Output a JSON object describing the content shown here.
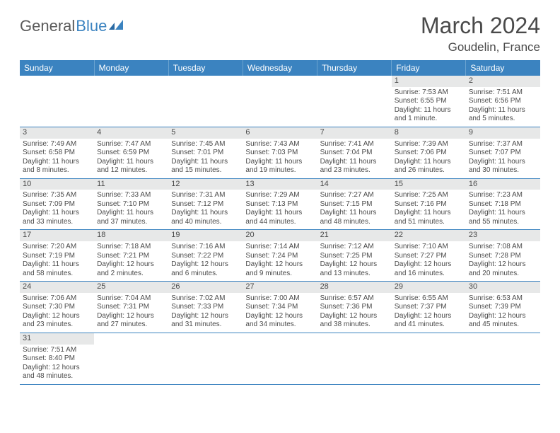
{
  "logo": {
    "word1": "General",
    "word2": "Blue"
  },
  "title": "March 2024",
  "location": "Goudelin, France",
  "colors": {
    "header_bg": "#3b83c0",
    "header_text": "#ffffff",
    "daybar_bg": "#e7e8e8",
    "row_divider": "#3b83c0",
    "text": "#4a4a4a",
    "logo_blue": "#3b83c0"
  },
  "day_headers": [
    "Sunday",
    "Monday",
    "Tuesday",
    "Wednesday",
    "Thursday",
    "Friday",
    "Saturday"
  ],
  "weeks": [
    [
      null,
      null,
      null,
      null,
      null,
      {
        "n": "1",
        "sunrise": "Sunrise: 7:53 AM",
        "sunset": "Sunset: 6:55 PM",
        "d1": "Daylight: 11 hours",
        "d2": "and 1 minute."
      },
      {
        "n": "2",
        "sunrise": "Sunrise: 7:51 AM",
        "sunset": "Sunset: 6:56 PM",
        "d1": "Daylight: 11 hours",
        "d2": "and 5 minutes."
      }
    ],
    [
      {
        "n": "3",
        "sunrise": "Sunrise: 7:49 AM",
        "sunset": "Sunset: 6:58 PM",
        "d1": "Daylight: 11 hours",
        "d2": "and 8 minutes."
      },
      {
        "n": "4",
        "sunrise": "Sunrise: 7:47 AM",
        "sunset": "Sunset: 6:59 PM",
        "d1": "Daylight: 11 hours",
        "d2": "and 12 minutes."
      },
      {
        "n": "5",
        "sunrise": "Sunrise: 7:45 AM",
        "sunset": "Sunset: 7:01 PM",
        "d1": "Daylight: 11 hours",
        "d2": "and 15 minutes."
      },
      {
        "n": "6",
        "sunrise": "Sunrise: 7:43 AM",
        "sunset": "Sunset: 7:03 PM",
        "d1": "Daylight: 11 hours",
        "d2": "and 19 minutes."
      },
      {
        "n": "7",
        "sunrise": "Sunrise: 7:41 AM",
        "sunset": "Sunset: 7:04 PM",
        "d1": "Daylight: 11 hours",
        "d2": "and 23 minutes."
      },
      {
        "n": "8",
        "sunrise": "Sunrise: 7:39 AM",
        "sunset": "Sunset: 7:06 PM",
        "d1": "Daylight: 11 hours",
        "d2": "and 26 minutes."
      },
      {
        "n": "9",
        "sunrise": "Sunrise: 7:37 AM",
        "sunset": "Sunset: 7:07 PM",
        "d1": "Daylight: 11 hours",
        "d2": "and 30 minutes."
      }
    ],
    [
      {
        "n": "10",
        "sunrise": "Sunrise: 7:35 AM",
        "sunset": "Sunset: 7:09 PM",
        "d1": "Daylight: 11 hours",
        "d2": "and 33 minutes."
      },
      {
        "n": "11",
        "sunrise": "Sunrise: 7:33 AM",
        "sunset": "Sunset: 7:10 PM",
        "d1": "Daylight: 11 hours",
        "d2": "and 37 minutes."
      },
      {
        "n": "12",
        "sunrise": "Sunrise: 7:31 AM",
        "sunset": "Sunset: 7:12 PM",
        "d1": "Daylight: 11 hours",
        "d2": "and 40 minutes."
      },
      {
        "n": "13",
        "sunrise": "Sunrise: 7:29 AM",
        "sunset": "Sunset: 7:13 PM",
        "d1": "Daylight: 11 hours",
        "d2": "and 44 minutes."
      },
      {
        "n": "14",
        "sunrise": "Sunrise: 7:27 AM",
        "sunset": "Sunset: 7:15 PM",
        "d1": "Daylight: 11 hours",
        "d2": "and 48 minutes."
      },
      {
        "n": "15",
        "sunrise": "Sunrise: 7:25 AM",
        "sunset": "Sunset: 7:16 PM",
        "d1": "Daylight: 11 hours",
        "d2": "and 51 minutes."
      },
      {
        "n": "16",
        "sunrise": "Sunrise: 7:23 AM",
        "sunset": "Sunset: 7:18 PM",
        "d1": "Daylight: 11 hours",
        "d2": "and 55 minutes."
      }
    ],
    [
      {
        "n": "17",
        "sunrise": "Sunrise: 7:20 AM",
        "sunset": "Sunset: 7:19 PM",
        "d1": "Daylight: 11 hours",
        "d2": "and 58 minutes."
      },
      {
        "n": "18",
        "sunrise": "Sunrise: 7:18 AM",
        "sunset": "Sunset: 7:21 PM",
        "d1": "Daylight: 12 hours",
        "d2": "and 2 minutes."
      },
      {
        "n": "19",
        "sunrise": "Sunrise: 7:16 AM",
        "sunset": "Sunset: 7:22 PM",
        "d1": "Daylight: 12 hours",
        "d2": "and 6 minutes."
      },
      {
        "n": "20",
        "sunrise": "Sunrise: 7:14 AM",
        "sunset": "Sunset: 7:24 PM",
        "d1": "Daylight: 12 hours",
        "d2": "and 9 minutes."
      },
      {
        "n": "21",
        "sunrise": "Sunrise: 7:12 AM",
        "sunset": "Sunset: 7:25 PM",
        "d1": "Daylight: 12 hours",
        "d2": "and 13 minutes."
      },
      {
        "n": "22",
        "sunrise": "Sunrise: 7:10 AM",
        "sunset": "Sunset: 7:27 PM",
        "d1": "Daylight: 12 hours",
        "d2": "and 16 minutes."
      },
      {
        "n": "23",
        "sunrise": "Sunrise: 7:08 AM",
        "sunset": "Sunset: 7:28 PM",
        "d1": "Daylight: 12 hours",
        "d2": "and 20 minutes."
      }
    ],
    [
      {
        "n": "24",
        "sunrise": "Sunrise: 7:06 AM",
        "sunset": "Sunset: 7:30 PM",
        "d1": "Daylight: 12 hours",
        "d2": "and 23 minutes."
      },
      {
        "n": "25",
        "sunrise": "Sunrise: 7:04 AM",
        "sunset": "Sunset: 7:31 PM",
        "d1": "Daylight: 12 hours",
        "d2": "and 27 minutes."
      },
      {
        "n": "26",
        "sunrise": "Sunrise: 7:02 AM",
        "sunset": "Sunset: 7:33 PM",
        "d1": "Daylight: 12 hours",
        "d2": "and 31 minutes."
      },
      {
        "n": "27",
        "sunrise": "Sunrise: 7:00 AM",
        "sunset": "Sunset: 7:34 PM",
        "d1": "Daylight: 12 hours",
        "d2": "and 34 minutes."
      },
      {
        "n": "28",
        "sunrise": "Sunrise: 6:57 AM",
        "sunset": "Sunset: 7:36 PM",
        "d1": "Daylight: 12 hours",
        "d2": "and 38 minutes."
      },
      {
        "n": "29",
        "sunrise": "Sunrise: 6:55 AM",
        "sunset": "Sunset: 7:37 PM",
        "d1": "Daylight: 12 hours",
        "d2": "and 41 minutes."
      },
      {
        "n": "30",
        "sunrise": "Sunrise: 6:53 AM",
        "sunset": "Sunset: 7:39 PM",
        "d1": "Daylight: 12 hours",
        "d2": "and 45 minutes."
      }
    ],
    [
      {
        "n": "31",
        "sunrise": "Sunrise: 7:51 AM",
        "sunset": "Sunset: 8:40 PM",
        "d1": "Daylight: 12 hours",
        "d2": "and 48 minutes."
      },
      null,
      null,
      null,
      null,
      null,
      null
    ]
  ]
}
